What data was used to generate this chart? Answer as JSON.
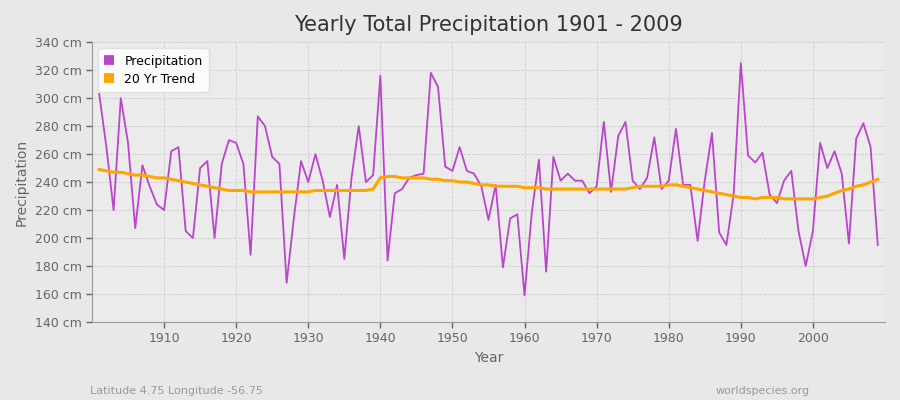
{
  "title": "Yearly Total Precipitation 1901 - 2009",
  "xlabel": "Year",
  "ylabel": "Precipitation",
  "subtitle_left": "Latitude 4.75 Longitude -56.75",
  "subtitle_right": "worldspecies.org",
  "years": [
    1901,
    1902,
    1903,
    1904,
    1905,
    1906,
    1907,
    1908,
    1909,
    1910,
    1911,
    1912,
    1913,
    1914,
    1915,
    1916,
    1917,
    1918,
    1919,
    1920,
    1921,
    1922,
    1923,
    1924,
    1925,
    1926,
    1927,
    1928,
    1929,
    1930,
    1931,
    1932,
    1933,
    1934,
    1935,
    1936,
    1937,
    1938,
    1939,
    1940,
    1941,
    1942,
    1943,
    1944,
    1945,
    1946,
    1947,
    1948,
    1949,
    1950,
    1951,
    1952,
    1953,
    1954,
    1955,
    1956,
    1957,
    1958,
    1959,
    1960,
    1961,
    1962,
    1963,
    1964,
    1965,
    1966,
    1967,
    1968,
    1969,
    1970,
    1971,
    1972,
    1973,
    1974,
    1975,
    1976,
    1977,
    1978,
    1979,
    1980,
    1981,
    1982,
    1983,
    1984,
    1985,
    1986,
    1987,
    1988,
    1989,
    1990,
    1991,
    1992,
    1993,
    1994,
    1995,
    1996,
    1997,
    1998,
    1999,
    2000,
    2001,
    2002,
    2003,
    2004,
    2005,
    2006,
    2007,
    2008,
    2009
  ],
  "precipitation": [
    303,
    265,
    220,
    300,
    268,
    207,
    252,
    237,
    224,
    220,
    262,
    265,
    205,
    200,
    250,
    255,
    200,
    253,
    270,
    268,
    253,
    188,
    287,
    280,
    258,
    253,
    168,
    214,
    255,
    240,
    260,
    241,
    215,
    238,
    185,
    243,
    280,
    240,
    245,
    316,
    184,
    232,
    235,
    243,
    245,
    246,
    318,
    308,
    251,
    248,
    265,
    248,
    246,
    237,
    213,
    238,
    179,
    214,
    217,
    159,
    218,
    256,
    176,
    258,
    241,
    246,
    241,
    241,
    232,
    237,
    283,
    233,
    273,
    283,
    241,
    235,
    243,
    272,
    235,
    241,
    278,
    238,
    238,
    198,
    241,
    275,
    204,
    195,
    231,
    325,
    259,
    254,
    261,
    231,
    225,
    241,
    248,
    205,
    180,
    205,
    268,
    250,
    262,
    246,
    196,
    271,
    282,
    265,
    195
  ],
  "trend": [
    249,
    248,
    247,
    247,
    246,
    245,
    245,
    244,
    243,
    243,
    242,
    241,
    240,
    239,
    238,
    237,
    236,
    235,
    234,
    234,
    234,
    233,
    233,
    233,
    233,
    233,
    233,
    233,
    233,
    233,
    234,
    234,
    234,
    234,
    234,
    234,
    234,
    234,
    235,
    243,
    244,
    244,
    243,
    243,
    243,
    243,
    242,
    242,
    241,
    241,
    240,
    240,
    239,
    238,
    238,
    237,
    237,
    237,
    237,
    236,
    236,
    236,
    235,
    235,
    235,
    235,
    235,
    235,
    235,
    235,
    235,
    235,
    235,
    235,
    236,
    237,
    237,
    237,
    237,
    238,
    238,
    237,
    236,
    235,
    234,
    233,
    232,
    231,
    230,
    229,
    229,
    228,
    229,
    229,
    229,
    228,
    228,
    228,
    228,
    228,
    229,
    230,
    232,
    234,
    235,
    237,
    238,
    240,
    242
  ],
  "precip_color": "#BB44CC",
  "trend_color": "#FFA500",
  "fig_bg_color": "#E8E8E8",
  "plot_bg_color": "#EBEBEB",
  "grid_color": "#CCCCCC",
  "ylim": [
    140,
    340
  ],
  "yticks": [
    140,
    160,
    180,
    200,
    220,
    240,
    260,
    280,
    300,
    320,
    340
  ],
  "xticks": [
    1910,
    1920,
    1930,
    1940,
    1950,
    1960,
    1970,
    1980,
    1990,
    2000
  ],
  "title_fontsize": 15,
  "label_fontsize": 10,
  "tick_fontsize": 9,
  "xlim_left": 1900,
  "xlim_right": 2010
}
